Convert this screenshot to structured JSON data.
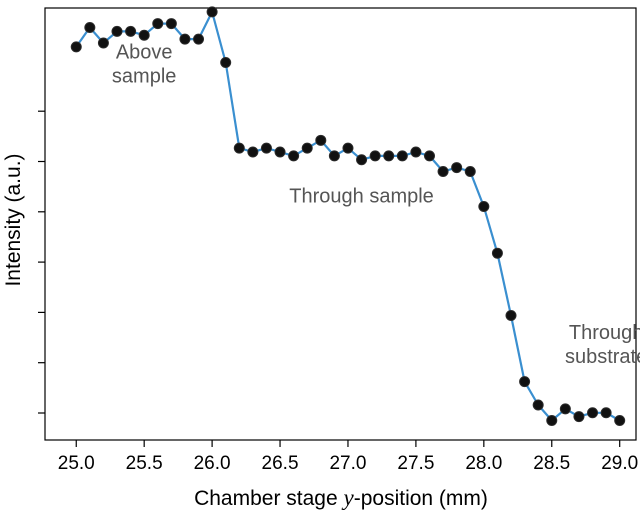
{
  "chart_data": {
    "type": "line",
    "xlabel": "Chamber stage y-position (mm)",
    "xlabel_parts": {
      "before": "Chamber stage ",
      "var": "y",
      "after": "-position (mm)"
    },
    "ylabel": "Intensity (a.u.)",
    "xlim": [
      24.77,
      29.12
    ],
    "ylim": [
      -0.04,
      1.07
    ],
    "xticks": [
      "25.0",
      "25.5",
      "26.0",
      "26.5",
      "27.0",
      "27.5",
      "28.0",
      "28.5",
      "29.0"
    ],
    "ytick_count": 7,
    "grid": false,
    "line_color": "#3a8fd0",
    "marker_color": "#111111",
    "series": [
      {
        "x": [
          25.0,
          25.1,
          25.2,
          25.3,
          25.4,
          25.5,
          25.6,
          25.7,
          25.8,
          25.9,
          26.0,
          26.1,
          26.2,
          26.3,
          26.4,
          26.5,
          26.6,
          26.7,
          26.8,
          26.9,
          27.0,
          27.1,
          27.2,
          27.3,
          27.4,
          27.5,
          27.6,
          27.7,
          27.8,
          27.9,
          28.0,
          28.1,
          28.2,
          28.3,
          28.4,
          28.5,
          28.6,
          28.7,
          28.8,
          28.9,
          29.0
        ],
        "y": [
          0.97,
          1.02,
          0.98,
          1.01,
          1.01,
          1.0,
          1.03,
          1.03,
          0.99,
          0.99,
          1.06,
          0.93,
          0.71,
          0.7,
          0.71,
          0.7,
          0.69,
          0.71,
          0.73,
          0.69,
          0.71,
          0.68,
          0.69,
          0.69,
          0.69,
          0.7,
          0.69,
          0.65,
          0.66,
          0.65,
          0.56,
          0.44,
          0.28,
          0.11,
          0.05,
          0.01,
          0.04,
          0.02,
          0.03,
          0.03,
          0.01
        ]
      }
    ],
    "annotations": [
      {
        "lines": [
          "Above",
          "sample"
        ],
        "x": 25.5,
        "y": 0.94
      },
      {
        "lines": [
          "Through sample"
        ],
        "x": 27.1,
        "y": 0.57
      },
      {
        "lines": [
          "Through",
          "substrate"
        ],
        "x": 28.9,
        "y": 0.22
      }
    ]
  }
}
